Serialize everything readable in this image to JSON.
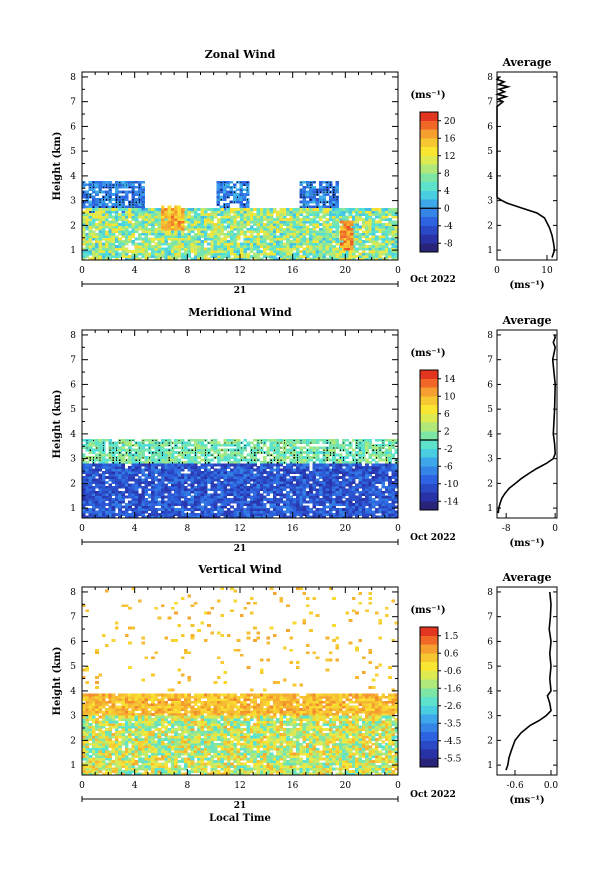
{
  "chart_data": [
    {
      "type": "heatmap",
      "title": "Zonal Wind",
      "ylabel": "Height (km)",
      "xlabel": "",
      "x_ticks": [
        "0",
        "4",
        "8",
        "12",
        "16",
        "20",
        "0"
      ],
      "y_ticks": [
        "1",
        "2",
        "3",
        "4",
        "5",
        "6",
        "7",
        "8"
      ],
      "xlim": [
        0,
        24
      ],
      "ylim": [
        0.6,
        8.2
      ],
      "date_label": "21",
      "date_suffix": "Oct 2022",
      "colorbar_unit": "(ms⁻¹)",
      "colorbar_ticks": [
        "20",
        "16",
        "12",
        "8",
        "4",
        "0",
        "-4",
        "-8"
      ],
      "colorbar_range": [
        -10,
        22
      ],
      "colorbar_zero_line": 0,
      "profile_title": "Average",
      "profile_unit": "(ms⁻¹)",
      "profile_xticks": [
        "0",
        "10"
      ],
      "profile_xlim": [
        0,
        12
      ],
      "profile": {
        "height": [
          0.7,
          1.0,
          1.3,
          1.6,
          1.9,
          2.1,
          2.3,
          2.5,
          2.7,
          2.9,
          3.0,
          3.1,
          3.15,
          3.3,
          3.6,
          4.0,
          5.0,
          6.0,
          6.8,
          7.0,
          7.1,
          7.2,
          7.3,
          7.4,
          7.5,
          7.6,
          7.7,
          7.8,
          7.9,
          8.0
        ],
        "value": [
          11,
          11.5,
          11.3,
          11,
          10.5,
          10,
          9.5,
          8,
          5,
          2,
          1,
          0.2,
          0,
          0,
          0,
          0,
          0,
          0,
          0,
          1.2,
          0.2,
          1.8,
          0.1,
          1.5,
          0.4,
          2.2,
          0.3,
          1.4,
          0,
          0.5
        ]
      },
      "regions": [
        {
          "t0": 0.0,
          "t1": 4.8,
          "h0": 2.5,
          "h1": 3.8,
          "v": -1,
          "dots": true
        },
        {
          "t0": 10.2,
          "t1": 12.7,
          "h0": 2.6,
          "h1": 3.8,
          "v": -1,
          "dots": true
        },
        {
          "t0": 16.5,
          "t1": 19.6,
          "h0": 2.7,
          "h1": 3.8,
          "v": -1,
          "dots": true
        },
        {
          "t0": 0.0,
          "t1": 24.0,
          "h0": 0.6,
          "h1": 2.7,
          "v": 8,
          "spread": 6
        },
        {
          "t0": 6.0,
          "t1": 7.8,
          "h0": 1.8,
          "h1": 2.8,
          "v": 16,
          "spread": 3
        },
        {
          "t0": 19.6,
          "t1": 20.6,
          "h0": 1.0,
          "h1": 2.2,
          "v": 17,
          "spread": 3
        }
      ]
    },
    {
      "type": "heatmap",
      "title": "Meridional Wind",
      "ylabel": "Height (km)",
      "xlabel": "",
      "x_ticks": [
        "0",
        "4",
        "8",
        "12",
        "16",
        "20",
        "0"
      ],
      "y_ticks": [
        "1",
        "2",
        "3",
        "4",
        "5",
        "6",
        "7",
        "8"
      ],
      "xlim": [
        0,
        24
      ],
      "ylim": [
        0.6,
        8.2
      ],
      "date_label": "21",
      "date_suffix": "Oct 2022",
      "colorbar_unit": "(ms⁻¹)",
      "colorbar_ticks": [
        "14",
        "10",
        "6",
        "2",
        "-2",
        "-6",
        "-10",
        "-14"
      ],
      "colorbar_range": [
        -16,
        16
      ],
      "colorbar_zero_line": 0,
      "profile_title": "Average",
      "profile_unit": "(ms⁻¹)",
      "profile_xticks": [
        "-8",
        "0"
      ],
      "profile_xlim": [
        -9.5,
        0.3
      ],
      "profile": {
        "height": [
          0.8,
          1.0,
          1.2,
          1.4,
          1.6,
          1.8,
          2.0,
          2.2,
          2.4,
          2.6,
          2.8,
          3.0,
          3.2,
          3.6,
          4.0,
          5.0,
          6.0,
          7.0,
          7.5,
          7.7,
          7.9,
          8.0
        ],
        "value": [
          -9.3,
          -9.2,
          -9.0,
          -8.7,
          -8.2,
          -7.5,
          -6.5,
          -5.5,
          -4.3,
          -3.0,
          -1.5,
          -0.3,
          0,
          -0.1,
          -0.3,
          -0.1,
          0,
          -0.4,
          0,
          -0.3,
          0,
          -0.1
        ]
      },
      "regions": [
        {
          "t0": 0.0,
          "t1": 24.0,
          "h0": 2.8,
          "h1": 3.8,
          "v": 0.5,
          "dots": true
        },
        {
          "t0": 0.0,
          "t1": 24.0,
          "h0": 0.6,
          "h1": 2.8,
          "v": -10,
          "spread": 3
        }
      ]
    },
    {
      "type": "heatmap",
      "title": "Vertical Wind",
      "ylabel": "Height (km)",
      "xlabel": "Local Time",
      "x_ticks": [
        "0",
        "4",
        "8",
        "12",
        "16",
        "20",
        "0"
      ],
      "y_ticks": [
        "1",
        "2",
        "3",
        "4",
        "5",
        "6",
        "7",
        "8"
      ],
      "xlim": [
        0,
        24
      ],
      "ylim": [
        0.6,
        8.2
      ],
      "date_label": "21",
      "date_suffix": "Oct 2022",
      "colorbar_unit": "(ms⁻¹)",
      "colorbar_ticks": [
        "1.5",
        "0.6",
        "-0.6",
        "-1.6",
        "-2.6",
        "-3.5",
        "-4.5",
        "-5.5"
      ],
      "colorbar_range": [
        -6.0,
        2.0
      ],
      "colorbar_zero_line": null,
      "profile_title": "Average",
      "profile_unit": "(ms⁻¹)",
      "profile_xticks": [
        "-0.6",
        "0.0"
      ],
      "profile_xlim": [
        -0.9,
        0.1
      ],
      "profile": {
        "height": [
          0.8,
          1.0,
          1.3,
          1.6,
          2.0,
          2.3,
          2.6,
          2.8,
          3.0,
          3.2,
          3.5,
          3.8,
          4.0,
          4.5,
          5.0,
          5.5,
          6.0,
          6.5,
          7.0,
          7.5,
          8.0
        ],
        "value": [
          -0.75,
          -0.72,
          -0.7,
          -0.66,
          -0.6,
          -0.5,
          -0.35,
          -0.2,
          -0.08,
          0,
          -0.02,
          -0.06,
          0,
          -0.02,
          0,
          -0.02,
          0,
          -0.03,
          -0.01,
          0,
          -0.02
        ]
      },
      "regions": [
        {
          "t0": 0.0,
          "t1": 24.0,
          "h0": 3.0,
          "h1": 3.9,
          "v": 0.4,
          "spread": 0.6
        },
        {
          "t0": 0.0,
          "t1": 24.0,
          "h0": 0.6,
          "h1": 3.0,
          "v": -0.9,
          "spread": 1.6
        },
        {
          "t0": 0.0,
          "t1": 24.0,
          "h0": 5.0,
          "h1": 8.2,
          "v": 0.3,
          "spread": 0.4,
          "sparse": 0.05
        },
        {
          "t0": 0.0,
          "t1": 24.0,
          "h0": 4.0,
          "h1": 5.0,
          "v": 0.3,
          "spread": 0.4,
          "sparse": 0.04
        }
      ]
    }
  ]
}
